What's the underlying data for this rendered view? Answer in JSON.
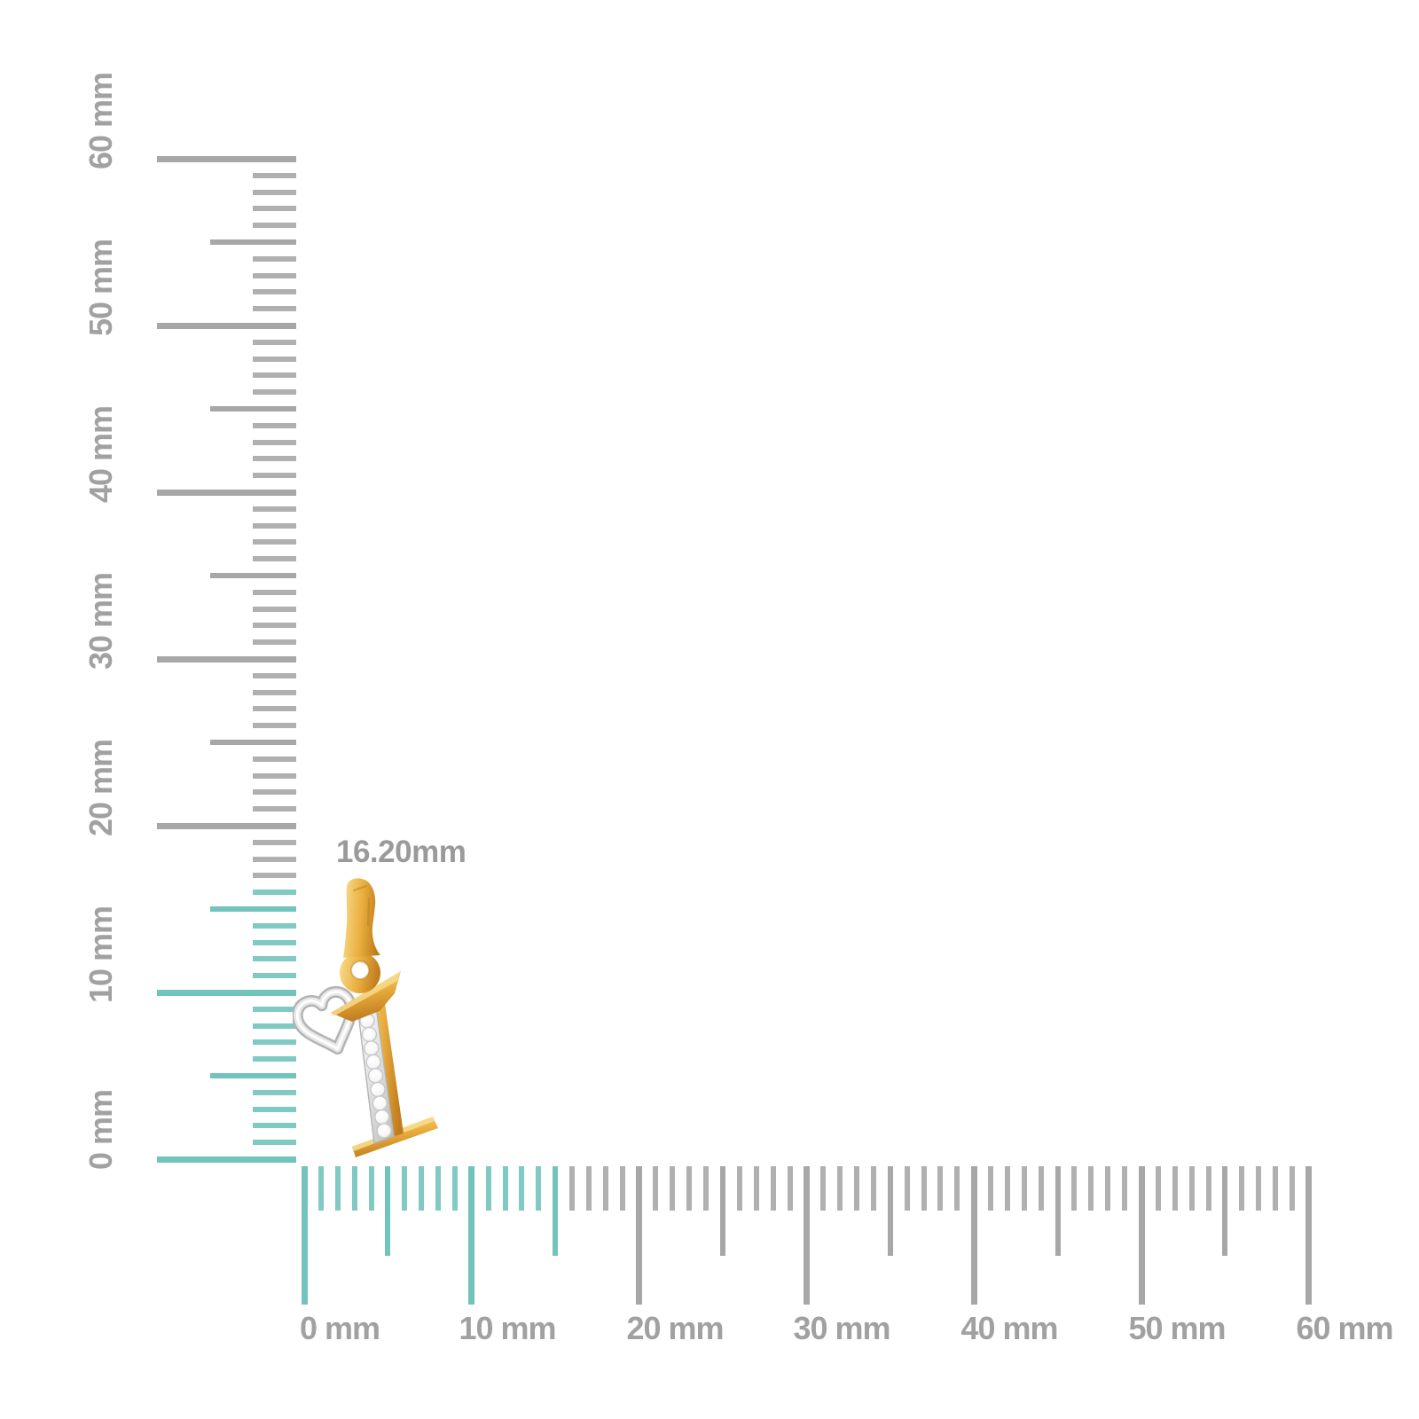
{
  "page": {
    "background": "#ffffff"
  },
  "measurement_label": {
    "text": "16.20mm"
  },
  "rulers": {
    "vertical": {
      "min_mm": 0,
      "max_mm": 60,
      "major_every_mm": 10,
      "mid_every_mm": 5,
      "highlight_until_mm": 16,
      "labels": [
        {
          "mm": 0,
          "text": "0 mm"
        },
        {
          "mm": 10,
          "text": "10 mm"
        },
        {
          "mm": 20,
          "text": "20 mm"
        },
        {
          "mm": 30,
          "text": "30 mm"
        },
        {
          "mm": 40,
          "text": "40 mm"
        },
        {
          "mm": 50,
          "text": "50 mm"
        },
        {
          "mm": 60,
          "text": "60 mm"
        }
      ]
    },
    "horizontal": {
      "min_mm": 0,
      "max_mm": 60,
      "major_every_mm": 10,
      "mid_every_mm": 5,
      "highlight_until_mm": 15,
      "labels": [
        {
          "mm": 0,
          "text": "0 mm"
        },
        {
          "mm": 10,
          "text": "10 mm"
        },
        {
          "mm": 20,
          "text": "20 mm"
        },
        {
          "mm": 30,
          "text": "30 mm"
        },
        {
          "mm": 40,
          "text": "40 mm"
        },
        {
          "mm": 50,
          "text": "50 mm"
        },
        {
          "mm": 60,
          "text": "60 mm"
        }
      ]
    }
  },
  "pendant": {
    "description": "Yellow gold initial letter I pendant with diamond-set stem, white gold open heart accent and gold bail",
    "diamond_count": 9
  },
  "colors": {
    "page_bg": "#ffffff",
    "tick_gray": "#a7a7a7",
    "tick_teal": "#73c3bd",
    "label_gray": "#a1a1a1",
    "measure_label_gray": "#9a9a9a",
    "gold": "#e9ae3e",
    "gold_light": "#f9dd8f",
    "gold_dark": "#c07d1e",
    "white_gold": "#d9d9d9",
    "diamond_white": "#f7f7f7"
  }
}
